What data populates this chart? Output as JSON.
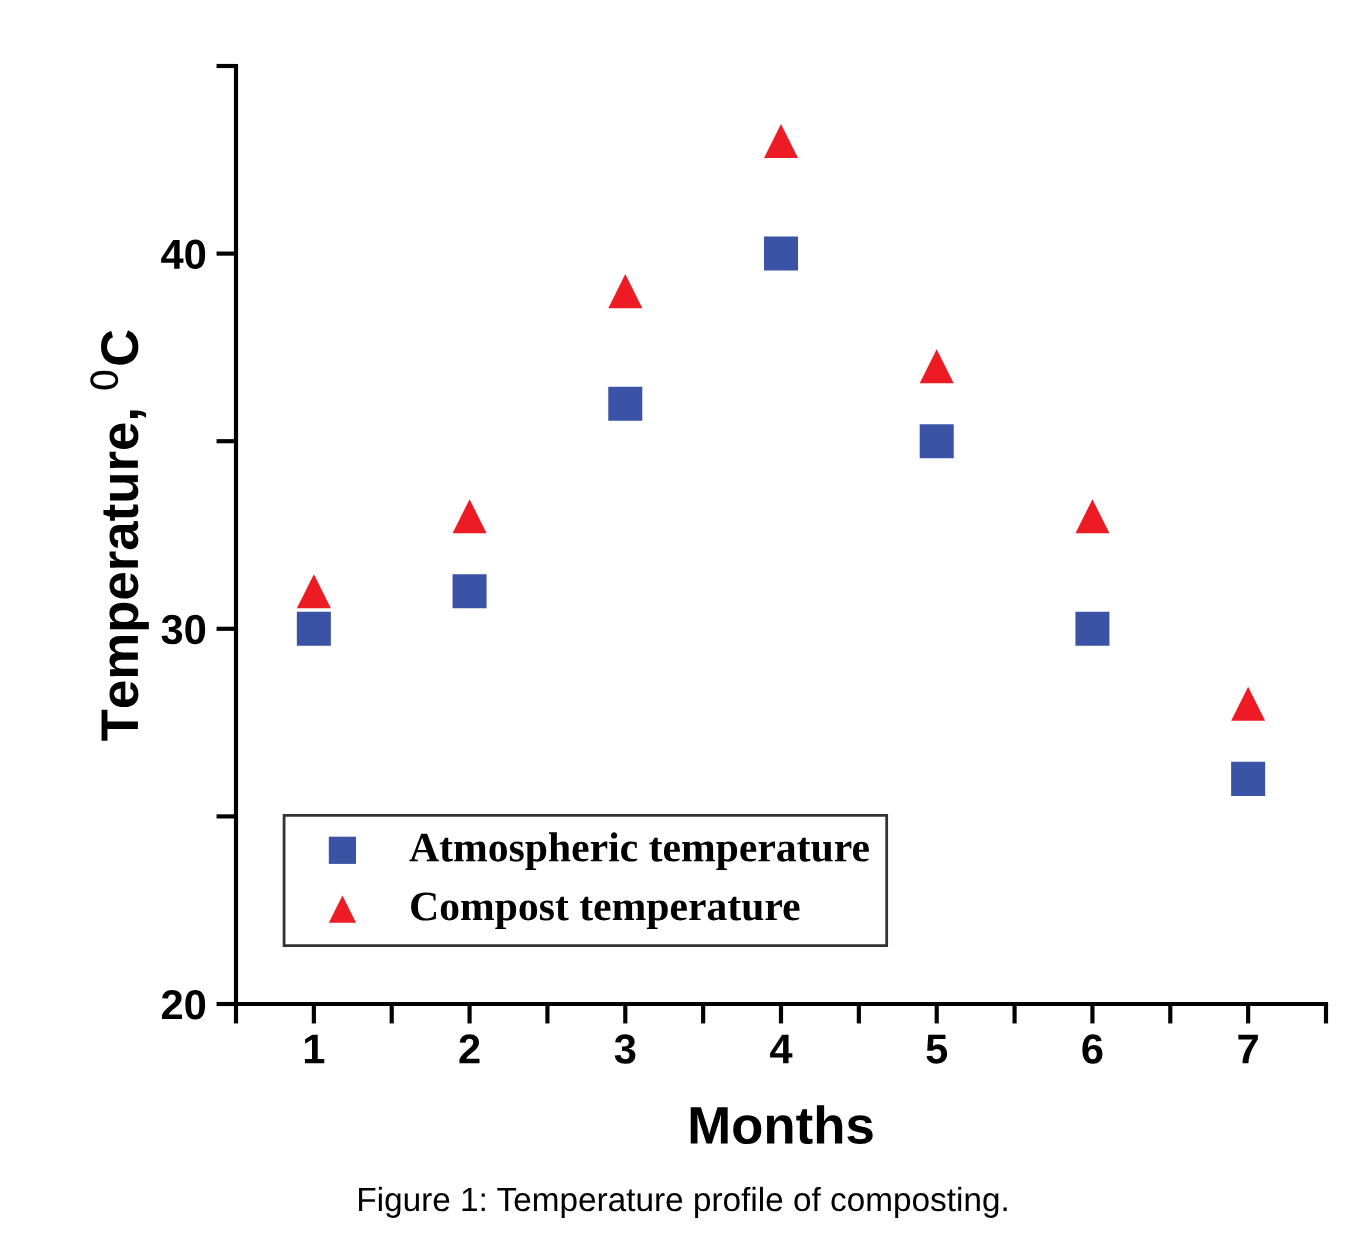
{
  "chart_data": {
    "type": "scatter",
    "xlabel": "Months",
    "ylabel": "Temperature, $^{0}$C",
    "annotations": [
      "Figure 1: Temperature profile of composting."
    ],
    "x": [
      1,
      2,
      3,
      4,
      5,
      6,
      7
    ],
    "series": [
      {
        "name": "Atmospheric temperature",
        "color": "#3a53a4",
        "marker": "square",
        "values": [
          30,
          31,
          36,
          40,
          35,
          30,
          26
        ]
      },
      {
        "name": "Compost temperature",
        "color": "#ed1c24",
        "marker": "triangle",
        "values": [
          31,
          33,
          39,
          43,
          37,
          33,
          28
        ]
      }
    ],
    "xlim": [
      0.5,
      7.5
    ],
    "xticks": [
      {
        "value": 0.5,
        "label": null
      },
      1,
      {
        "value": 1.5,
        "label": null
      },
      2,
      {
        "value": 2.5,
        "label": null
      },
      3,
      {
        "value": 3.5,
        "label": null
      },
      4,
      {
        "value": 4.5,
        "label": null
      },
      5,
      {
        "value": 5.5,
        "label": null
      },
      6,
      {
        "value": 6.5,
        "label": null
      },
      7,
      {
        "value": 7.5,
        "label": null
      }
    ],
    "ylim": [
      20,
      45
    ],
    "yticks": [
      20,
      {
        "value": 25,
        "label": null
      },
      30,
      {
        "value": 35,
        "label": null
      },
      40,
      {
        "value": 45,
        "label": null
      }
    ],
    "grid": false,
    "legend": "bottom left"
  }
}
